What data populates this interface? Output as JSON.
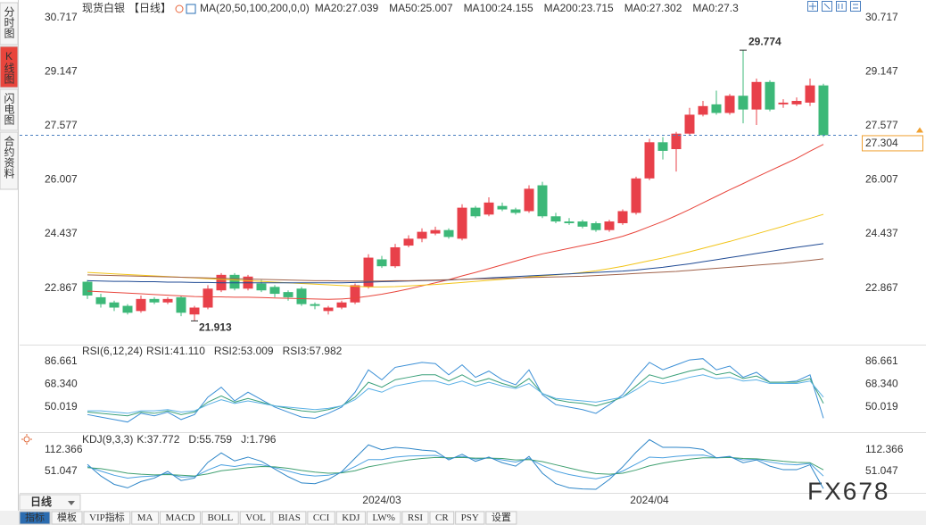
{
  "sidebar": [
    "分时图",
    "K线图",
    "闪电图",
    "合约资料"
  ],
  "period_select": "日线",
  "toolbar": [
    "指标",
    "模板",
    "VIP指标",
    "MA",
    "MACD",
    "BOLL",
    "VOL",
    "BIAS",
    "CCI",
    "KDJ",
    "LW%",
    "RSI",
    "CR",
    "PSY",
    "设置"
  ],
  "watermark": "FX678",
  "chart_data": [
    {
      "type": "candlestick",
      "title": "现货白银",
      "period": "【日线】",
      "indicator": "MA(20,50,100,200,0,0)",
      "categories": [
        null,
        null,
        null,
        null,
        null,
        null,
        null,
        null,
        null,
        null,
        null,
        null,
        null,
        null,
        null,
        null,
        null,
        null,
        null,
        null,
        null,
        null,
        "2024/03",
        null,
        null,
        null,
        null,
        null,
        null,
        null,
        null,
        null,
        null,
        null,
        null,
        null,
        null,
        null,
        null,
        null,
        null,
        null,
        "2024/04",
        null,
        null,
        null,
        null,
        null,
        null,
        null,
        null,
        null,
        null,
        null,
        null,
        null
      ],
      "open": [
        23.05,
        22.6,
        22.45,
        22.35,
        22.2,
        22.55,
        22.45,
        22.6,
        22.1,
        22.3,
        22.8,
        23.25,
        22.85,
        23.0,
        22.9,
        22.75,
        22.85,
        22.4,
        22.2,
        22.3,
        22.45,
        22.9,
        23.7,
        23.5,
        24.1,
        24.3,
        24.45,
        24.55,
        24.3,
        25.2,
        25.0,
        25.25,
        25.15,
        25.1,
        25.85,
        24.95,
        24.8,
        24.8,
        24.75,
        24.55,
        24.75,
        25.05,
        26.05,
        27.1,
        26.9,
        27.35,
        27.9,
        28.2,
        27.95,
        28.45,
        28.05,
        28.85,
        28.2,
        28.2,
        28.25,
        28.75
      ],
      "high": [
        23.1,
        22.7,
        22.5,
        22.4,
        22.65,
        22.6,
        22.6,
        22.65,
        22.35,
        22.95,
        23.3,
        23.3,
        23.25,
        23.1,
        22.95,
        22.8,
        22.9,
        22.45,
        22.35,
        22.5,
        23.0,
        23.85,
        23.8,
        24.15,
        24.4,
        24.6,
        24.65,
        24.6,
        25.3,
        25.25,
        25.5,
        25.35,
        25.2,
        25.85,
        25.95,
        25.05,
        24.9,
        24.85,
        24.8,
        24.85,
        25.15,
        26.1,
        27.2,
        27.25,
        27.4,
        28.1,
        28.3,
        28.6,
        28.5,
        29.774,
        28.95,
        28.9,
        28.35,
        28.4,
        28.95,
        28.8
      ],
      "low": [
        22.55,
        22.3,
        22.2,
        22.1,
        22.15,
        22.4,
        22.4,
        22.05,
        21.913,
        22.25,
        22.75,
        22.8,
        22.8,
        22.75,
        22.6,
        22.5,
        22.35,
        22.25,
        22.1,
        22.25,
        22.4,
        22.85,
        23.45,
        23.45,
        24.05,
        24.2,
        24.4,
        24.3,
        24.25,
        24.9,
        24.95,
        25.1,
        25.0,
        25.05,
        24.9,
        24.75,
        24.7,
        24.6,
        24.5,
        24.5,
        24.7,
        25.0,
        26.0,
        26.6,
        26.25,
        27.3,
        27.85,
        27.9,
        27.9,
        27.65,
        27.6,
        28.0,
        28.1,
        28.15,
        28.15,
        27.25
      ],
      "close": [
        22.65,
        22.4,
        22.3,
        22.15,
        22.55,
        22.45,
        22.55,
        22.15,
        22.3,
        22.85,
        23.25,
        22.85,
        23.2,
        22.8,
        22.7,
        22.6,
        22.4,
        22.35,
        22.3,
        22.45,
        22.95,
        23.75,
        23.5,
        24.05,
        24.3,
        24.5,
        24.55,
        24.35,
        25.2,
        24.95,
        25.35,
        25.15,
        25.05,
        25.75,
        24.95,
        24.8,
        24.75,
        24.65,
        24.55,
        24.8,
        25.1,
        26.05,
        27.1,
        26.85,
        27.35,
        27.9,
        28.15,
        27.95,
        28.45,
        28.05,
        28.85,
        28.05,
        28.25,
        28.3,
        28.75,
        27.304
      ],
      "up_color": "#e8404a",
      "down_color": "#3cb878",
      "series": [
        {
          "name": "MA20:27.039",
          "color": "#e8453c",
          "values": [
            22.78,
            22.76,
            22.74,
            22.72,
            22.7,
            22.68,
            22.66,
            22.64,
            22.62,
            22.61,
            22.61,
            22.6,
            22.6,
            22.59,
            22.58,
            22.57,
            22.56,
            22.55,
            22.54,
            22.55,
            22.58,
            22.63,
            22.69,
            22.76,
            22.84,
            22.93,
            23.02,
            23.11,
            23.22,
            23.32,
            23.43,
            23.54,
            23.65,
            23.76,
            23.86,
            23.94,
            24.02,
            24.1,
            24.18,
            24.27,
            24.37,
            24.5,
            24.65,
            24.8,
            24.97,
            25.15,
            25.34,
            25.53,
            25.72,
            25.9,
            26.09,
            26.27,
            26.45,
            26.63,
            26.84,
            27.039
          ]
        },
        {
          "name": "MA50:25.007",
          "color": "#f2c417",
          "values": [
            23.32,
            23.3,
            23.28,
            23.26,
            23.24,
            23.22,
            23.2,
            23.18,
            23.16,
            23.14,
            23.12,
            23.1,
            23.08,
            23.06,
            23.04,
            23.02,
            23.0,
            22.98,
            22.96,
            22.94,
            22.92,
            22.9,
            22.9,
            22.91,
            22.93,
            22.95,
            22.97,
            23.0,
            23.03,
            23.06,
            23.09,
            23.12,
            23.15,
            23.19,
            23.22,
            23.25,
            23.28,
            23.32,
            23.37,
            23.43,
            23.5,
            23.58,
            23.66,
            23.74,
            23.83,
            23.92,
            24.02,
            24.12,
            24.22,
            24.33,
            24.44,
            24.55,
            24.66,
            24.78,
            24.89,
            25.007
          ]
        },
        {
          "name": "MA100:24.155",
          "color": "#1f4a94",
          "values": [
            23.08,
            23.07,
            23.06,
            23.06,
            23.05,
            23.05,
            23.04,
            23.04,
            23.03,
            23.03,
            23.02,
            23.02,
            23.02,
            23.02,
            23.02,
            23.02,
            23.02,
            23.02,
            23.02,
            23.02,
            23.03,
            23.04,
            23.05,
            23.06,
            23.07,
            23.08,
            23.09,
            23.1,
            23.12,
            23.14,
            23.16,
            23.18,
            23.2,
            23.22,
            23.24,
            23.26,
            23.28,
            23.3,
            23.32,
            23.34,
            23.36,
            23.39,
            23.43,
            23.47,
            23.52,
            23.57,
            23.63,
            23.69,
            23.75,
            23.81,
            23.87,
            23.93,
            23.99,
            24.05,
            24.1,
            24.155
          ]
        },
        {
          "name": "MA200:23.715",
          "color": "#a0624a",
          "values": [
            23.25,
            23.24,
            23.23,
            23.22,
            23.21,
            23.2,
            23.19,
            23.18,
            23.17,
            23.16,
            23.15,
            23.14,
            23.13,
            23.12,
            23.11,
            23.1,
            23.09,
            23.08,
            23.08,
            23.07,
            23.07,
            23.07,
            23.07,
            23.08,
            23.08,
            23.09,
            23.1,
            23.11,
            23.12,
            23.13,
            23.14,
            23.15,
            23.16,
            23.17,
            23.18,
            23.19,
            23.2,
            23.21,
            23.23,
            23.25,
            23.27,
            23.29,
            23.31,
            23.33,
            23.35,
            23.38,
            23.41,
            23.44,
            23.47,
            23.5,
            23.53,
            23.56,
            23.59,
            23.63,
            23.67,
            23.715
          ]
        }
      ],
      "legend_extra": [
        {
          "text": "MA0:27.302",
          "color": "#3a7dc9"
        },
        {
          "text": "MA0:27.3",
          "color": "#3a7dc9"
        }
      ],
      "ylim": [
        21.25,
        31.1
      ],
      "yticks": [
        30.717,
        29.147,
        27.577,
        26.007,
        24.437,
        22.867
      ],
      "last_price": 27.304,
      "high_label": 29.774,
      "low_label": 21.913
    },
    {
      "type": "line",
      "title": "RSI(6,12,24)",
      "series": [
        {
          "name": "RSI1:41.110",
          "color": "#3b8fd6",
          "values": [
            44,
            42,
            40,
            38,
            45,
            43,
            46,
            40,
            44,
            58,
            66,
            55,
            62,
            56,
            50,
            46,
            42,
            41,
            45,
            50,
            62,
            80,
            72,
            82,
            84,
            86,
            85,
            76,
            84,
            74,
            79,
            72,
            68,
            80,
            60,
            52,
            50,
            48,
            45,
            52,
            60,
            74,
            86,
            80,
            84,
            88,
            89,
            80,
            83,
            74,
            78,
            70,
            70,
            71,
            76,
            41.11
          ]
        },
        {
          "name": "RSI2:53.009",
          "color": "#3aa07a",
          "values": [
            46,
            45,
            44,
            43,
            46,
            45,
            47,
            44,
            46,
            54,
            59,
            54,
            57,
            54,
            51,
            49,
            47,
            46,
            48,
            51,
            58,
            70,
            66,
            72,
            74,
            76,
            76,
            71,
            76,
            70,
            73,
            69,
            66,
            73,
            61,
            56,
            54,
            53,
            51,
            54,
            58,
            67,
            76,
            73,
            76,
            79,
            81,
            76,
            78,
            73,
            75,
            70,
            70,
            70,
            73,
            53.009
          ]
        },
        {
          "name": "RSI3:57.982",
          "color": "#5ab0e6",
          "values": [
            47,
            47,
            46,
            45,
            47,
            47,
            48,
            46,
            47,
            52,
            56,
            53,
            55,
            53,
            51,
            50,
            49,
            48,
            49,
            51,
            56,
            65,
            62,
            67,
            69,
            71,
            71,
            68,
            71,
            67,
            70,
            67,
            65,
            69,
            61,
            57,
            56,
            55,
            54,
            56,
            58,
            64,
            71,
            69,
            71,
            74,
            76,
            73,
            74,
            71,
            72,
            69,
            69,
            69,
            71,
            57.982
          ]
        }
      ],
      "ylim": [
        31.3,
        97.4
      ],
      "yticks": [
        86.661,
        {
          "value": 68.34,
          "label": "68.340"
        },
        50.019
      ]
    },
    {
      "type": "line",
      "title": "KDJ(9,3,3)",
      "series": [
        {
          "name": "K:37.772",
          "color": "#4aa0e0",
          "values": [
            65,
            52,
            40,
            32,
            36,
            38,
            45,
            35,
            36,
            55,
            70,
            65,
            72,
            70,
            62,
            52,
            42,
            38,
            40,
            48,
            65,
            85,
            85,
            92,
            95,
            96,
            97,
            88,
            94,
            86,
            90,
            84,
            78,
            88,
            68,
            52,
            42,
            35,
            30,
            38,
            52,
            72,
            92,
            90,
            94,
            97,
            98,
            90,
            92,
            84,
            86,
            78,
            72,
            70,
            74,
            37.772
          ]
        },
        {
          "name": "D:55.759",
          "color": "#40a070",
          "values": [
            62,
            59,
            53,
            46,
            43,
            41,
            42,
            40,
            38,
            44,
            53,
            57,
            62,
            65,
            64,
            60,
            54,
            49,
            46,
            47,
            53,
            64,
            71,
            78,
            84,
            88,
            91,
            90,
            91,
            89,
            89,
            88,
            84,
            85,
            79,
            70,
            61,
            52,
            45,
            43,
            46,
            55,
            67,
            75,
            81,
            86,
            90,
            90,
            91,
            88,
            87,
            84,
            80,
            77,
            76,
            55.759
          ]
        },
        {
          "name": "J:1.796",
          "color": "#2e86c8",
          "values": [
            71,
            38,
            14,
            4,
            22,
            32,
            51,
            25,
            32,
            77,
            104,
            81,
            92,
            80,
            58,
            36,
            18,
            16,
            28,
            50,
            89,
            127,
            113,
            120,
            117,
            112,
            109,
            84,
            100,
            80,
            92,
            76,
            66,
            94,
            46,
            16,
            4,
            1,
            0,
            28,
            64,
            106,
            142,
            120,
            120,
            119,
            114,
            90,
            94,
            76,
            84,
            66,
            56,
            56,
            70,
            1.796
          ]
        }
      ],
      "ylim": [
        -10.3,
        153.2
      ],
      "yticks": [
        112.366,
        51.047
      ]
    }
  ]
}
